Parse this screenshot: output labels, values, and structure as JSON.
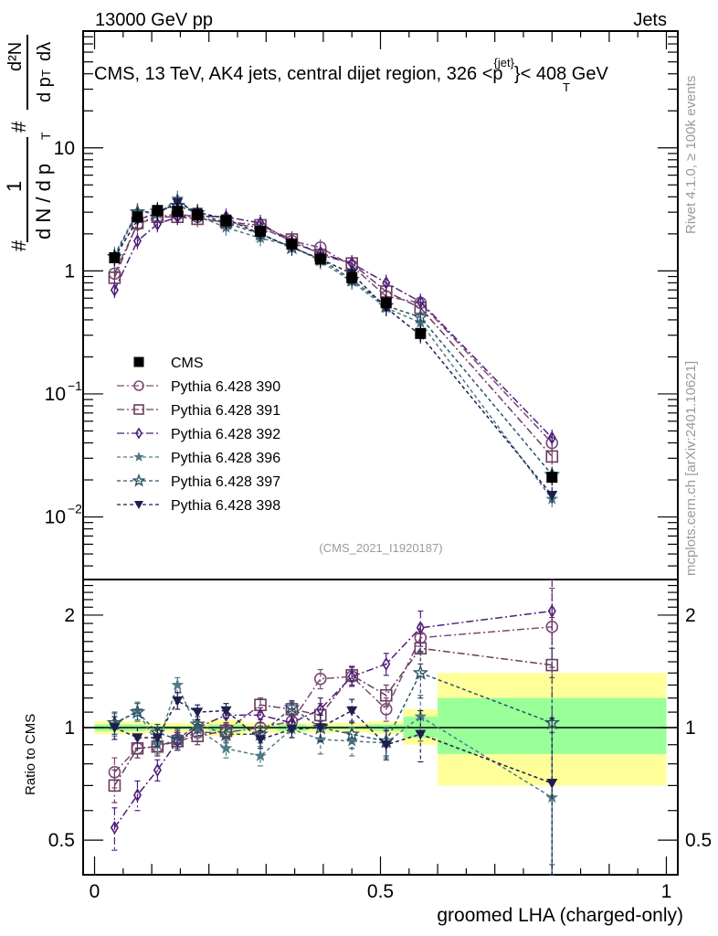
{
  "header": {
    "left": "13000 GeV pp",
    "right": "Jets"
  },
  "side_labels": {
    "rivet": "Rivet 4.1.0, ≥ 100k events",
    "mcplots": "mcplots.cern.ch [arXiv:2401.10621]"
  },
  "chart_data": [
    {
      "type": "scatter",
      "name": "main",
      "title": "CMS, 13 TeV, AK4 jets, central dijet region, 326 <p_T^{jet}< 408 GeV",
      "title_parts": {
        "main": "CMS, 13 TeV, AK4 jets, central dijet region, 326 <p",
        "sup": "{jet}",
        "sub": "T",
        "tail": "}< 408 GeV"
      },
      "ylabel": "1/(dN/dp_T) d²N/(dp_T dλ)",
      "ylabel_parts": {
        "num_hash": "#",
        "num_one": "1",
        "den": "d N / d p",
        "den_sub": "T",
        "r_num": "d²N",
        "r_den": "d p",
        "r_den_sub": "T",
        "r_den_tail": "dλ",
        "hash": "#"
      },
      "yscale": "log",
      "ylim": [
        0.0031,
        89
      ],
      "xlim": [
        -0.02,
        1.02
      ],
      "yticks": [
        {
          "v": 10,
          "label": "10"
        },
        {
          "v": 1,
          "label": "1"
        },
        {
          "v": 0.1,
          "label": "10",
          "exp": "−1"
        },
        {
          "v": 0.01,
          "label": "10",
          "exp": "−2"
        }
      ],
      "watermark": "(CMS_2021_I1920187)",
      "x": [
        0.035,
        0.075,
        0.11,
        0.145,
        0.18,
        0.23,
        0.29,
        0.345,
        0.395,
        0.45,
        0.51,
        0.57,
        0.8
      ],
      "series": [
        {
          "name": "CMS",
          "marker": "square-filled",
          "color": "#000000",
          "dash": "none",
          "values": [
            1.28,
            2.75,
            3.1,
            3.05,
            2.85,
            2.55,
            2.1,
            1.65,
            1.25,
            0.88,
            0.55,
            0.31,
            0.021
          ]
        },
        {
          "name": "Pythia 6.428 390",
          "marker": "circle-open",
          "color": "#7b4a78",
          "dash": "8,3,2,3",
          "values": [
            0.95,
            2.4,
            2.75,
            2.9,
            2.75,
            2.45,
            2.25,
            1.75,
            1.55,
            1.1,
            0.62,
            0.55,
            0.04
          ]
        },
        {
          "name": "Pythia 6.428 391",
          "marker": "square-open",
          "color": "#6b3d5e",
          "dash": "8,3,2,3",
          "values": [
            0.88,
            2.45,
            2.75,
            2.75,
            2.65,
            2.5,
            2.35,
            1.8,
            1.35,
            1.15,
            0.68,
            0.5,
            0.031
          ]
        },
        {
          "name": "Pythia 6.428 392",
          "marker": "diamond-open",
          "color": "#4e1f7a",
          "dash": "8,3,2,3",
          "values": [
            0.7,
            1.75,
            2.4,
            2.75,
            2.8,
            2.75,
            2.45,
            1.7,
            1.4,
            1.15,
            0.8,
            0.56,
            0.044
          ]
        },
        {
          "name": "Pythia 6.428 396",
          "marker": "star-filled",
          "color": "#4f7a86",
          "dash": "4,3",
          "values": [
            1.35,
            3.05,
            2.9,
            3.85,
            2.8,
            2.25,
            1.85,
            1.6,
            1.2,
            0.82,
            0.5,
            0.38,
            0.014
          ]
        },
        {
          "name": "Pythia 6.428 397",
          "marker": "star-open",
          "color": "#2d5266",
          "dash": "4,3",
          "values": [
            1.3,
            3.0,
            3.05,
            3.4,
            2.95,
            2.45,
            2.0,
            1.55,
            1.25,
            0.85,
            0.52,
            0.42,
            0.022
          ]
        },
        {
          "name": "Pythia 6.428 398",
          "marker": "triangle-down-filled",
          "color": "#1e1e4e",
          "dash": "4,3",
          "values": [
            1.28,
            2.6,
            2.95,
            3.6,
            3.0,
            2.65,
            2.0,
            1.55,
            1.25,
            0.95,
            0.5,
            0.3,
            0.015
          ]
        }
      ]
    },
    {
      "type": "scatter",
      "name": "ratio",
      "xlabel": "groomed LHA (charged-only)",
      "ylabel": "Ratio to CMS",
      "yscale": "log",
      "ylim": [
        0.404,
        2.49
      ],
      "xlim": [
        -0.02,
        1.02
      ],
      "xticks": [
        {
          "v": 0,
          "label": "0"
        },
        {
          "v": 0.5,
          "label": "0.5"
        },
        {
          "v": 1,
          "label": "1"
        }
      ],
      "yticks": [
        {
          "v": 2,
          "label": "2"
        },
        {
          "v": 1,
          "label": "1"
        },
        {
          "v": 0.5,
          "label": "0.5"
        }
      ],
      "bands": {
        "bins": [
          [
            0.0,
            0.05
          ],
          [
            0.05,
            0.09
          ],
          [
            0.09,
            0.13
          ],
          [
            0.13,
            0.16
          ],
          [
            0.16,
            0.2
          ],
          [
            0.2,
            0.26
          ],
          [
            0.26,
            0.32
          ],
          [
            0.32,
            0.37
          ],
          [
            0.37,
            0.42
          ],
          [
            0.42,
            0.48
          ],
          [
            0.48,
            0.54
          ],
          [
            0.54,
            0.6
          ],
          [
            0.6,
            1.0
          ]
        ],
        "stat_low": [
          0.98,
          0.98,
          0.99,
          0.99,
          0.99,
          0.98,
          0.99,
          0.98,
          0.99,
          0.99,
          0.98,
          0.94,
          0.85
        ],
        "stat_high": [
          1.02,
          1.02,
          1.01,
          1.01,
          1.01,
          1.02,
          1.01,
          1.02,
          1.01,
          1.01,
          1.02,
          1.07,
          1.2
        ],
        "tot_low": [
          0.96,
          0.96,
          0.97,
          0.97,
          0.97,
          0.95,
          0.97,
          0.97,
          0.97,
          0.97,
          0.96,
          0.9,
          0.7
        ],
        "tot_high": [
          1.04,
          1.04,
          1.03,
          1.03,
          1.03,
          1.05,
          1.03,
          1.03,
          1.03,
          1.03,
          1.04,
          1.12,
          1.4
        ],
        "stat_color": "#99ff99",
        "tot_color": "#ffff99"
      },
      "x": [
        0.035,
        0.075,
        0.11,
        0.145,
        0.18,
        0.23,
        0.29,
        0.345,
        0.395,
        0.45,
        0.51,
        0.57,
        0.8
      ],
      "series": [
        {
          "name": "Pythia 6.428 390",
          "marker": "circle-open",
          "color": "#7b4a78",
          "dash": "8,3,2,3",
          "values": [
            0.76,
            0.88,
            0.89,
            0.93,
            0.97,
            0.97,
            1.0,
            1.04,
            1.35,
            1.37,
            1.12,
            1.74,
            1.86
          ],
          "err": [
            0.07,
            0.05,
            0.05,
            0.05,
            0.05,
            0.05,
            0.05,
            0.05,
            0.08,
            0.08,
            0.08,
            0.15,
            0.5
          ]
        },
        {
          "name": "Pythia 6.428 391",
          "marker": "square-open",
          "color": "#6b3d5e",
          "dash": "8,3,2,3",
          "values": [
            0.7,
            0.88,
            0.89,
            0.92,
            0.95,
            0.98,
            1.15,
            1.12,
            1.08,
            1.38,
            1.22,
            1.63,
            1.47
          ],
          "err": [
            0.07,
            0.05,
            0.05,
            0.05,
            0.05,
            0.05,
            0.05,
            0.05,
            0.08,
            0.08,
            0.08,
            0.15,
            0.5
          ]
        },
        {
          "name": "Pythia 6.428 392",
          "marker": "diamond-open",
          "color": "#4e1f7a",
          "dash": "8,3,2,3",
          "values": [
            0.54,
            0.66,
            0.77,
            0.92,
            1.0,
            1.08,
            1.08,
            1.03,
            1.12,
            1.37,
            1.48,
            1.85,
            2.05
          ],
          "err": [
            0.07,
            0.06,
            0.05,
            0.05,
            0.05,
            0.05,
            0.05,
            0.05,
            0.08,
            0.08,
            0.1,
            0.2,
            0.6
          ]
        },
        {
          "name": "Pythia 6.428 396",
          "marker": "star-filled",
          "color": "#4f7a86",
          "dash": "4,3",
          "values": [
            1.02,
            1.11,
            0.9,
            1.3,
            0.99,
            0.88,
            0.84,
            0.99,
            0.93,
            0.92,
            0.91,
            1.07,
            0.65
          ],
          "err": [
            0.07,
            0.06,
            0.05,
            0.06,
            0.05,
            0.05,
            0.05,
            0.05,
            0.08,
            0.08,
            0.08,
            0.15,
            0.35
          ]
        },
        {
          "name": "Pythia 6.428 397",
          "marker": "star-open",
          "color": "#2d5266",
          "dash": "4,3",
          "values": [
            1.03,
            1.1,
            0.97,
            0.93,
            1.02,
            0.96,
            0.96,
            1.13,
            1.0,
            0.96,
            0.92,
            1.4,
            1.03
          ],
          "err": [
            0.07,
            0.06,
            0.05,
            0.06,
            0.05,
            0.05,
            0.05,
            0.05,
            0.08,
            0.08,
            0.08,
            0.2,
            0.6
          ]
        },
        {
          "name": "Pythia 6.428 398",
          "marker": "triangle-down-filled",
          "color": "#1e1e4e",
          "dash": "4,3",
          "values": [
            1.0,
            0.94,
            0.94,
            1.18,
            1.1,
            1.11,
            0.93,
            0.99,
            1.0,
            1.11,
            0.9,
            0.96,
            0.71
          ],
          "err": [
            0.07,
            0.06,
            0.05,
            0.06,
            0.05,
            0.05,
            0.05,
            0.05,
            0.08,
            0.08,
            0.08,
            0.15,
            0.35
          ]
        }
      ]
    }
  ],
  "legend": {
    "position": "center-left",
    "entries": [
      "CMS",
      "Pythia 6.428 390",
      "Pythia 6.428 391",
      "Pythia 6.428 392",
      "Pythia 6.428 396",
      "Pythia 6.428 397",
      "Pythia 6.428 398"
    ]
  }
}
